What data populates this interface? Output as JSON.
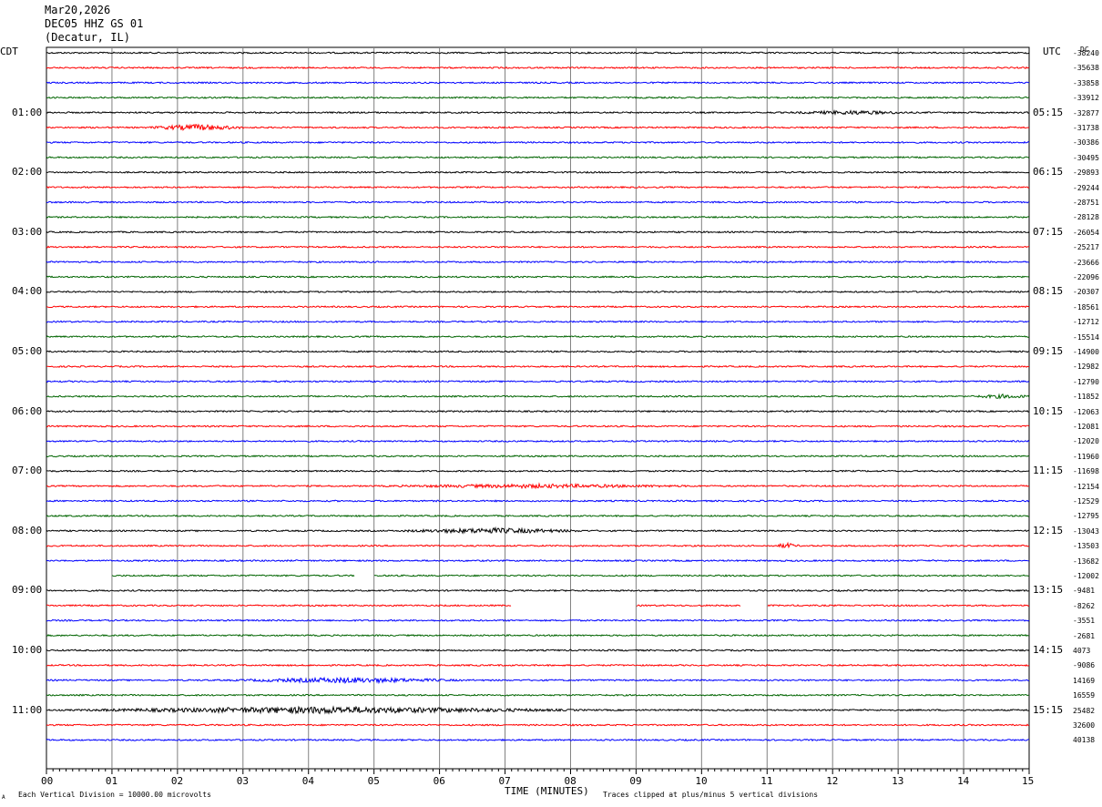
{
  "header": {
    "date": "Mar20,2026",
    "station": "DEC05 HHZ GS 01",
    "location": "(Decatur, IL)"
  },
  "left_axis_label": "CDT",
  "right_axis_label": "UTC",
  "dc_label": "DC",
  "footer": {
    "scale_note": "Each Vertical Division = 10000.00 microvolts",
    "clip_note": "Traces clipped at plus/minus 5 vertical divisions",
    "corner_mark": "A"
  },
  "colors": {
    "black": "#000000",
    "red": "#ff0000",
    "blue": "#0000ff",
    "green": "#006400",
    "grid": "#808080"
  },
  "chart_data": {
    "type": "line",
    "title": "",
    "xlabel": "TIME (MINUTES)",
    "ylabel": "",
    "xlim": [
      0,
      15
    ],
    "x_ticks": [
      "00",
      "01",
      "02",
      "03",
      "04",
      "05",
      "06",
      "07",
      "08",
      "09",
      "10",
      "11",
      "12",
      "13",
      "14",
      "15"
    ],
    "left_hours": [
      "01:00",
      "02:00",
      "03:00",
      "04:00",
      "05:00",
      "06:00",
      "07:00",
      "08:00",
      "09:00",
      "10:00",
      "11:00"
    ],
    "right_hours": [
      "05:15",
      "06:15",
      "07:15",
      "08:15",
      "09:15",
      "10:15",
      "11:15",
      "12:15",
      "13:15",
      "14:15",
      "15:15"
    ],
    "trace_color_cycle": [
      "black",
      "red",
      "blue",
      "green"
    ],
    "dc_offsets": [
      "-38240",
      "-35638",
      "-33858",
      "-33912",
      "-32877",
      "-31738",
      "-30386",
      "-30495",
      "-29893",
      "-29244",
      "-28751",
      "-28128",
      "-26054",
      "-25217",
      "-23666",
      "-22096",
      "-20307",
      "-18561",
      "-12712",
      "-15514",
      "-14900",
      "-12982",
      "-12790",
      "-11852",
      "-12063",
      "-12081",
      "-12020",
      "-11960",
      "-11698",
      "-12154",
      "-12529",
      "-12795",
      "-13043",
      "-13503",
      "-13682",
      "-12002",
      "-9481",
      "-8262",
      "-3551",
      "-2681",
      "4073",
      "-9086",
      "14169",
      "16559",
      "25482",
      "32600",
      "40138"
    ],
    "gaps": [
      {
        "trace": 35,
        "from_min": 0.0,
        "to_min": 1.0
      },
      {
        "trace": 35,
        "from_min": 4.7,
        "to_min": 5.0
      },
      {
        "trace": 37,
        "from_min": 7.1,
        "to_min": 9.0
      },
      {
        "trace": 37,
        "from_min": 10.6,
        "to_min": 11.0
      }
    ],
    "events": [
      {
        "trace": 5,
        "at_min": 2.3,
        "width_min": 0.8,
        "amp": 3.5
      },
      {
        "trace": 4,
        "at_min": 12.3,
        "width_min": 1.0,
        "amp": 2.0
      },
      {
        "trace": 23,
        "at_min": 14.6,
        "width_min": 0.5,
        "amp": 2.0
      },
      {
        "trace": 29,
        "at_min": 7.5,
        "width_min": 2.5,
        "amp": 2.0
      },
      {
        "trace": 32,
        "at_min": 6.8,
        "width_min": 1.5,
        "amp": 3.0
      },
      {
        "trace": 33,
        "at_min": 11.3,
        "width_min": 0.2,
        "amp": 3.0
      },
      {
        "trace": 42,
        "at_min": 4.6,
        "width_min": 1.8,
        "amp": 3.0
      },
      {
        "trace": 44,
        "at_min": 4.3,
        "width_min": 4.0,
        "amp": 4.0
      }
    ]
  }
}
